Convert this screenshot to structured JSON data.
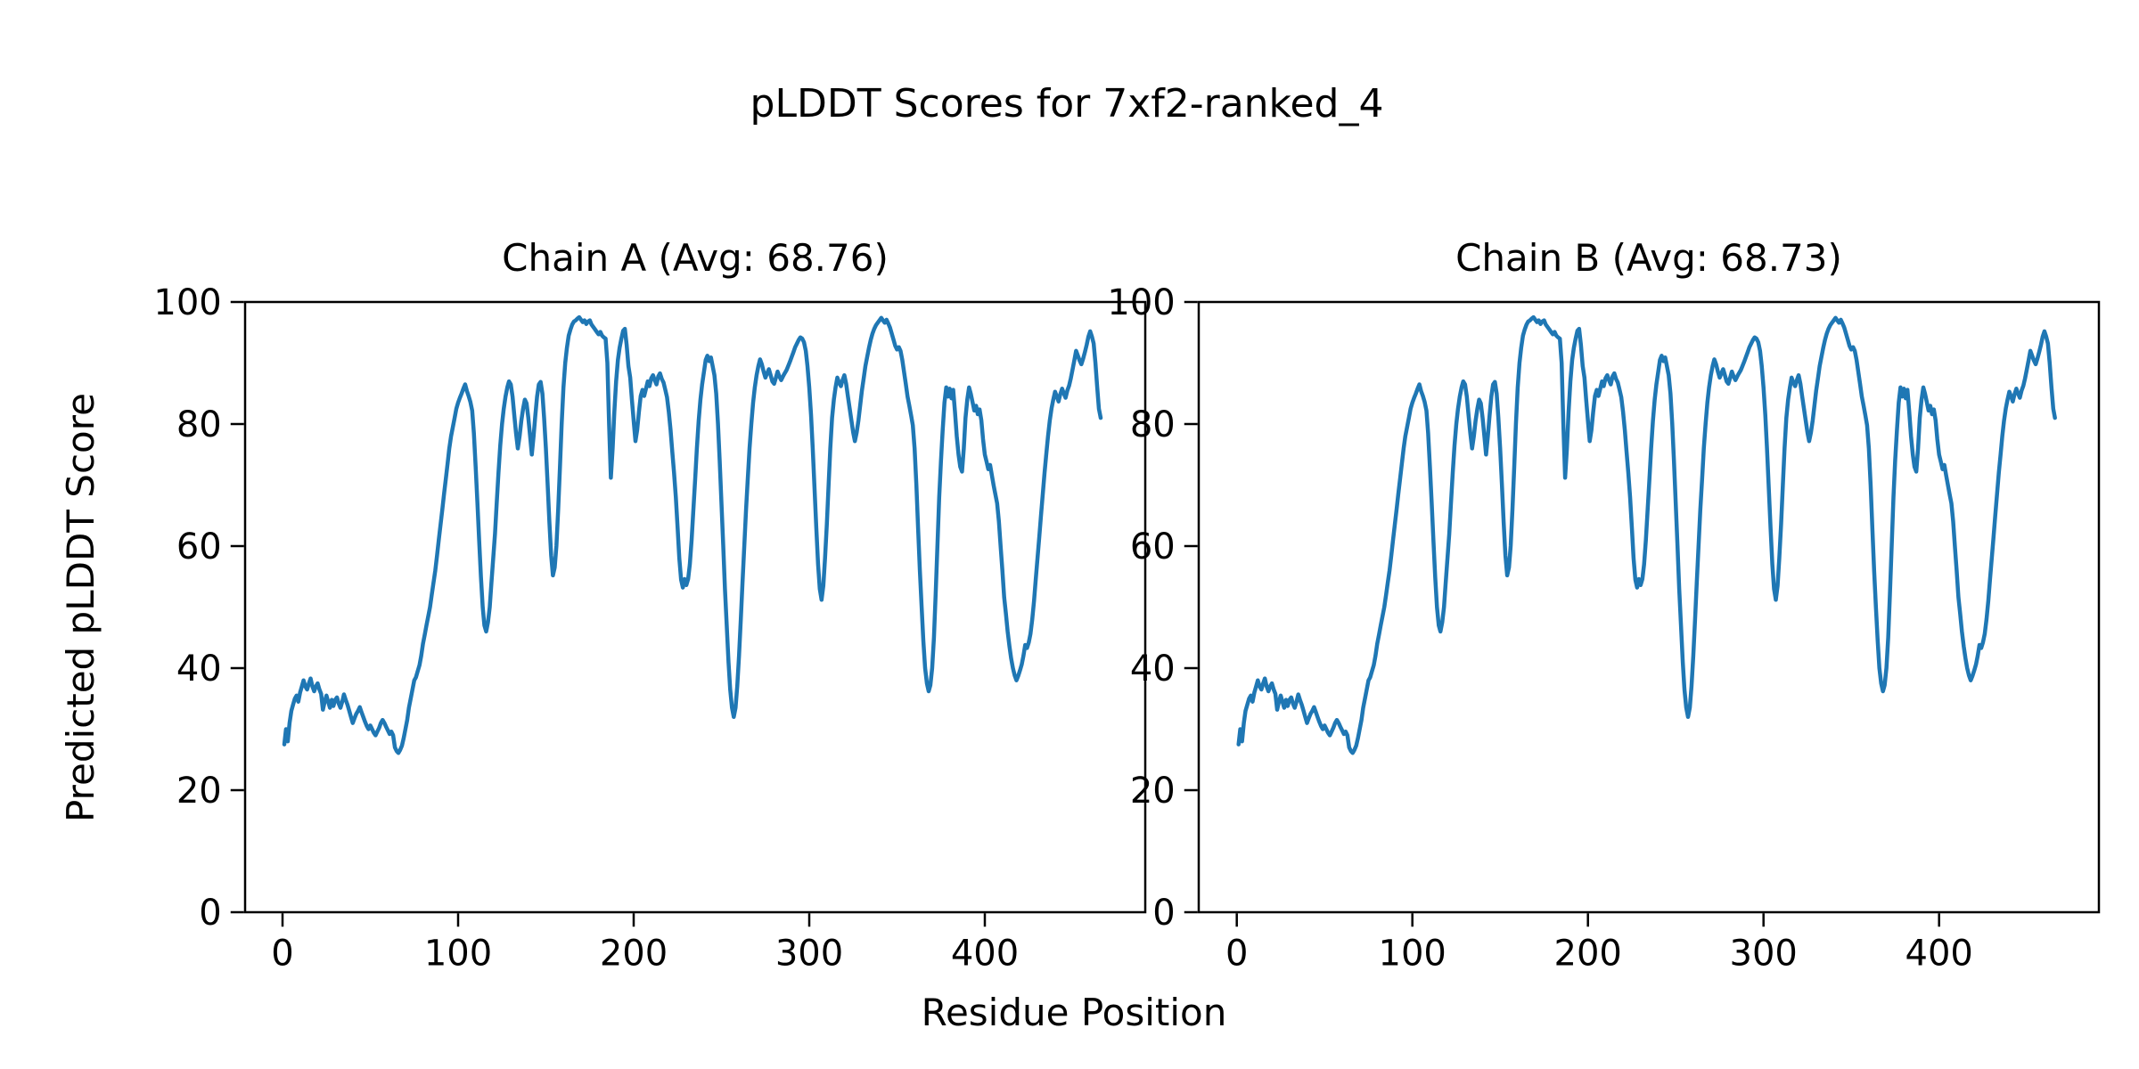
{
  "figure": {
    "title": "pLDDT Scores for 7xf2-ranked_4"
  },
  "chart_data": {
    "type": "line",
    "title": "pLDDT Scores for 7xf2-ranked_4",
    "xlabel": "Residue Position",
    "ylabel": "Predicted pLDDT Score",
    "xticks": [
      0,
      100,
      200,
      300,
      400
    ],
    "yticks": [
      0,
      20,
      40,
      60,
      80,
      100
    ],
    "xlim": [
      -22,
      493
    ],
    "ylim": [
      0,
      100
    ],
    "grid": false,
    "legend": "none",
    "line_color": "#1f77b4",
    "spine_color": "#000000",
    "x_start": 1,
    "subplots": [
      {
        "title": "Chain A (Avg: 68.76)",
        "chain": "A",
        "avg": 68.76,
        "series": "plddt_values"
      },
      {
        "title": "Chain B (Avg: 68.73)",
        "chain": "B",
        "avg": 68.73,
        "series": "plddt_values"
      }
    ],
    "plddt_values": [
      27.5,
      30,
      28,
      31,
      33,
      34,
      35,
      35.5,
      34.5,
      36,
      37,
      38,
      37,
      36.5,
      37.5,
      38.3,
      37,
      36.2,
      37,
      37.5,
      36.5,
      35.8,
      33.2,
      34.5,
      35.5,
      34.5,
      33.5,
      34.8,
      33.8,
      34.8,
      35.2,
      34.2,
      33.5,
      34.5,
      35.7,
      34.8,
      34,
      33,
      32,
      31,
      31.8,
      32.5,
      33,
      33.6,
      32.8,
      32,
      31.2,
      30.5,
      30,
      30.6,
      30,
      29.4,
      29,
      29.6,
      30.2,
      31,
      31.5,
      31,
      30.4,
      29.8,
      29.2,
      29.6,
      29,
      27,
      26.4,
      26.1,
      26.6,
      27.3,
      28.5,
      30,
      31.5,
      33.5,
      35,
      36.5,
      38,
      38.5,
      39.5,
      40.5,
      42,
      44,
      45.5,
      47,
      48.5,
      50,
      52,
      54,
      56,
      58.5,
      61,
      63.5,
      66,
      68.5,
      71,
      73.5,
      76,
      78,
      79.5,
      81,
      82.5,
      83.5,
      84.3,
      85,
      85.8,
      86.5,
      85.4,
      84.6,
      83.6,
      82.2,
      78.5,
      73,
      67,
      61,
      55,
      50,
      47,
      46,
      47.5,
      50,
      54,
      58,
      62,
      67,
      72,
      76.5,
      80,
      82.5,
      84.5,
      86,
      87,
      86.5,
      84.5,
      81.5,
      78.5,
      76,
      78,
      80.5,
      82.5,
      84,
      83.4,
      81,
      78,
      75,
      78,
      81.5,
      84.5,
      86.5,
      86.9,
      85,
      81,
      76,
      70,
      64,
      58.5,
      55.2,
      56.5,
      60,
      66,
      73,
      80,
      86,
      90,
      92.5,
      94.5,
      95.5,
      96.3,
      96.8,
      97,
      97.3,
      97.5,
      97.1,
      96.7,
      97,
      96.4,
      96.8,
      97,
      96.3,
      95.9,
      95.5,
      95.1,
      94.7,
      95.1,
      94.5,
      94.2,
      94,
      90,
      80,
      71.2,
      76,
      82,
      87,
      90.5,
      92.5,
      94,
      95.3,
      95.6,
      93,
      89.5,
      87.6,
      84,
      80.5,
      77.2,
      79,
      82,
      84.6,
      85.6,
      84.6,
      85.8,
      87,
      86.2,
      87.5,
      88,
      87.2,
      86.5,
      87.8,
      88.3,
      87.4,
      86.8,
      85.6,
      84.4,
      82,
      79,
      75.5,
      72,
      68,
      63,
      58,
      54.5,
      53.2,
      54.6,
      53.6,
      54.6,
      57,
      61,
      66,
      71,
      76,
      80.5,
      84,
      86.5,
      88.5,
      90.5,
      91.2,
      90.3,
      90.9,
      89.5,
      88,
      85,
      80,
      74,
      67,
      60,
      53,
      47,
      41,
      36.5,
      33.5,
      32,
      33.5,
      37,
      42,
      48,
      54,
      60,
      66,
      71,
      76,
      80,
      83.5,
      86,
      88,
      89.5,
      90.6,
      89.8,
      88.6,
      87.6,
      88.3,
      89,
      88,
      87,
      86.6,
      87.6,
      88.6,
      87.8,
      87.2,
      87.8,
      88.3,
      88.8,
      89.5,
      90.2,
      91,
      91.8,
      92.6,
      93.2,
      93.8,
      94.2,
      94,
      93.4,
      92,
      89.5,
      86,
      81.5,
      76,
      69.5,
      63,
      57,
      53,
      51.2,
      53.5,
      58,
      63.5,
      70,
      76,
      81,
      84,
      86,
      87.6,
      86.8,
      86.2,
      87.2,
      88,
      86.6,
      84.6,
      82.6,
      80.6,
      78.6,
      77.2,
      78.6,
      80.6,
      83,
      85.5,
      87.5,
      89.5,
      91,
      92.5,
      93.8,
      94.8,
      95.6,
      96.2,
      96.6,
      97,
      97.4,
      97,
      96.6,
      97.1,
      96.5,
      95.8,
      94.8,
      93.8,
      92.8,
      92.2,
      92.6,
      92,
      90.5,
      88.5,
      86.5,
      84.5,
      83,
      81.4,
      79.8,
      76,
      70,
      63,
      56,
      50,
      44.5,
      40,
      37.5,
      36.2,
      37.2,
      40,
      45,
      52,
      60,
      68,
      74,
      79,
      83.5,
      86,
      84.5,
      85.8,
      84.2,
      85.6,
      82,
      78,
      75,
      73,
      72.2,
      76,
      81,
      84,
      86,
      85,
      83.6,
      82.2,
      83,
      81.6,
      82.4,
      80.6,
      77.5,
      75,
      73.8,
      72.6,
      73.3,
      71.6,
      70,
      68.5,
      67,
      64,
      60,
      56,
      51.6,
      49,
      46,
      43.6,
      41.6,
      40,
      38.8,
      38,
      38.7,
      39.6,
      40.6,
      42,
      43.8,
      43.3,
      44.2,
      45.6,
      48,
      51,
      54.5,
      58,
      61.5,
      65,
      68.5,
      72,
      75,
      78,
      80.6,
      82.6,
      84,
      85.3,
      84.5,
      83.7,
      84.9,
      85.8,
      85,
      84.3,
      85.5,
      86.3,
      87.5,
      89,
      90.5,
      92,
      91.2,
      90.4,
      89.8,
      90.7,
      91.8,
      93,
      94.3,
      95.2,
      94.3,
      93.2,
      90,
      86,
      82.5,
      81
    ]
  }
}
